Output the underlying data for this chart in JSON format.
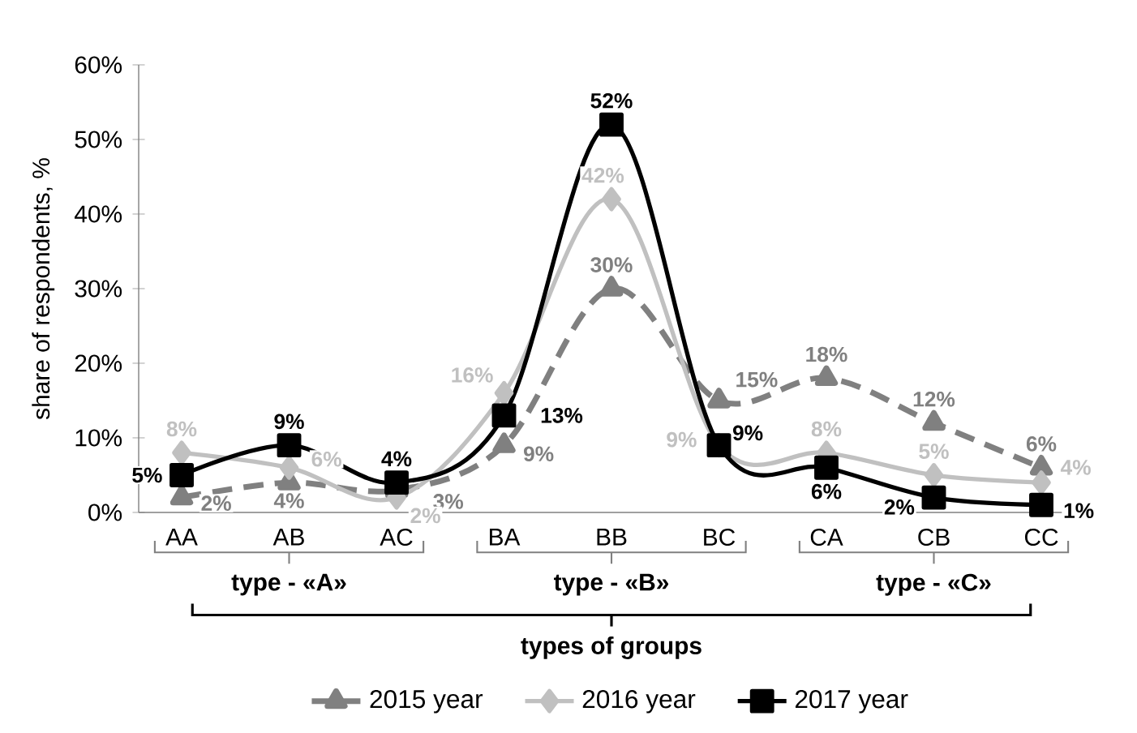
{
  "chart_data": {
    "type": "line",
    "ylabel": "share of respondents, %",
    "xlabel": "types of groups",
    "categories": [
      "AA",
      "AB",
      "AC",
      "BA",
      "BB",
      "BC",
      "CA",
      "CB",
      "CC"
    ],
    "annotations": [
      "type - «A»",
      "type - «B»",
      "type - «C»"
    ],
    "ylim": [
      0,
      60
    ],
    "yticks": [
      {
        "value": 0,
        "label": "0%"
      },
      {
        "value": 10,
        "label": "10%"
      },
      {
        "value": 20,
        "label": "20%"
      },
      {
        "value": 30,
        "label": "30%"
      },
      {
        "value": 40,
        "label": "40%"
      },
      {
        "value": 50,
        "label": "50%"
      },
      {
        "value": 60,
        "label": "60%"
      }
    ],
    "legend": "bottom",
    "series": [
      {
        "name": "2015  year",
        "color": "#808080",
        "marker": "triangle",
        "line_style": "dashed",
        "values": [
          2,
          4,
          3,
          9,
          30,
          15,
          18,
          12,
          6
        ],
        "value_labels": [
          "2%",
          "4%",
          "3%",
          "9%",
          "30%",
          "15%",
          "18%",
          "12%",
          "6%"
        ]
      },
      {
        "name": "2016  year",
        "color": "#c0c0c0",
        "marker": "diamond",
        "line_style": "solid",
        "values": [
          8,
          6,
          2,
          16,
          42,
          9,
          8,
          5,
          4
        ],
        "value_labels": [
          "8%",
          "6%",
          "2%",
          "16%",
          "42%",
          "9%",
          "8%",
          "5%",
          "4%"
        ]
      },
      {
        "name": "2017  year",
        "color": "#000000",
        "marker": "square",
        "line_style": "solid",
        "values": [
          5,
          9,
          4,
          13,
          52,
          9,
          6,
          2,
          1
        ],
        "value_labels": [
          "5%",
          "9%",
          "4%",
          "13%",
          "52%",
          "9%",
          "6%",
          "2%",
          "1%"
        ]
      }
    ]
  }
}
